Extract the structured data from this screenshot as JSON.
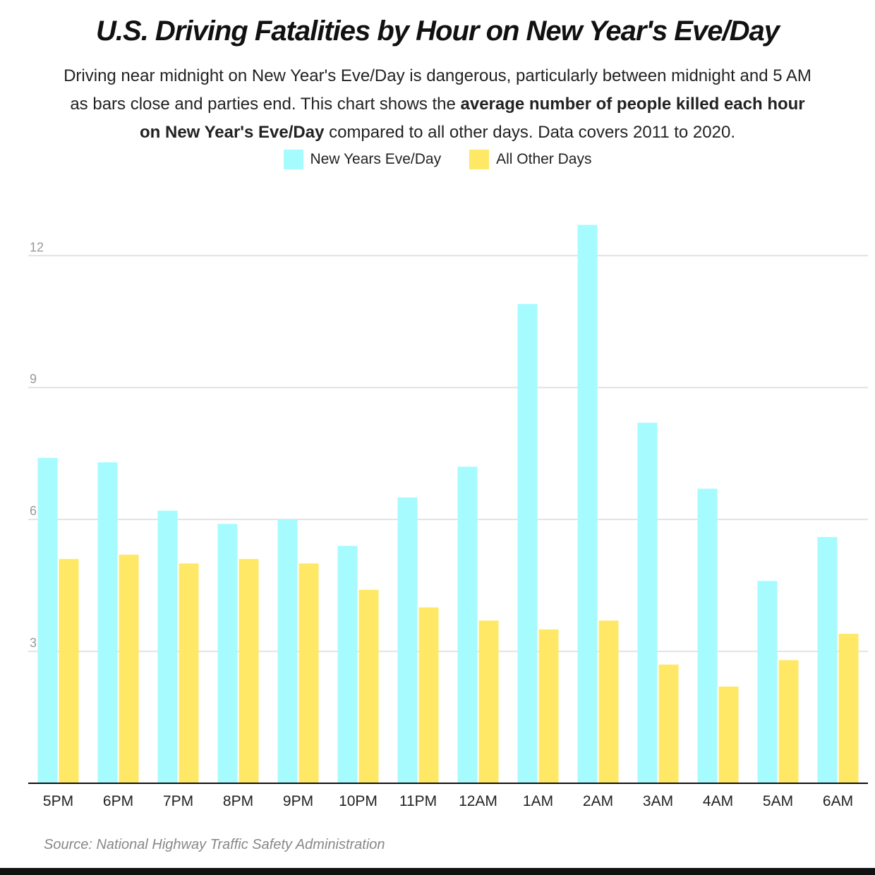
{
  "chart_data": {
    "type": "bar",
    "title": "U.S. Driving Fatalities by Hour on New Year's Eve/Day",
    "subtitle_parts": [
      "Driving near midnight on New Year's Eve/Day is dangerous, particularly between midnight and 5 AM as bars close and parties end. This chart shows the ",
      "average number of people killed each hour on New Year's Eve/Day",
      " compared to all other days. Data covers 2011 to 2020."
    ],
    "categories": [
      "5PM",
      "6PM",
      "7PM",
      "8PM",
      "9PM",
      "10PM",
      "11PM",
      "12AM",
      "1AM",
      "2AM",
      "3AM",
      "4AM",
      "5AM",
      "6AM"
    ],
    "series": [
      {
        "name": "New Years Eve/Day",
        "color": "#a6fbff",
        "values": [
          7.4,
          7.3,
          6.2,
          5.9,
          6.0,
          5.4,
          6.5,
          7.2,
          10.9,
          12.7,
          8.2,
          6.7,
          4.6,
          5.6
        ]
      },
      {
        "name": "All Other Days",
        "color": "#ffe866",
        "values": [
          5.1,
          5.2,
          5.0,
          5.1,
          5.0,
          4.4,
          4.0,
          3.7,
          3.5,
          3.7,
          2.7,
          2.2,
          2.8,
          3.4
        ]
      }
    ],
    "yticks": [
      3,
      6,
      9,
      12
    ],
    "ylim": [
      0,
      13
    ],
    "xlabel": "",
    "ylabel": "",
    "grid": true,
    "legend_position": "top",
    "source": "Source: National Highway Traffic Safety Administration"
  }
}
